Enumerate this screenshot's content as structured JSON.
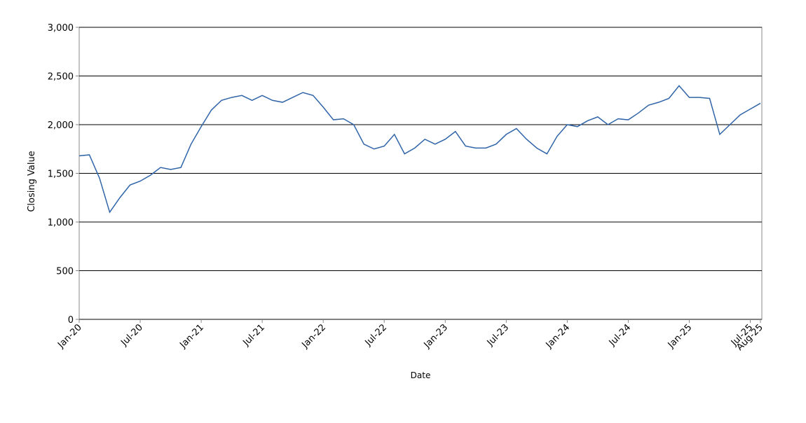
{
  "chart_data": {
    "type": "line",
    "x_label": "Date",
    "y_label": "Closing Value",
    "x": [
      "2020-01",
      "2020-02",
      "2020-03",
      "2020-04",
      "2020-05",
      "2020-06",
      "2020-07",
      "2020-08",
      "2020-09",
      "2020-10",
      "2020-11",
      "2020-12",
      "2021-01",
      "2021-02",
      "2021-03",
      "2021-04",
      "2021-05",
      "2021-06",
      "2021-07",
      "2021-08",
      "2021-09",
      "2021-10",
      "2021-11",
      "2021-12",
      "2022-01",
      "2022-02",
      "2022-03",
      "2022-04",
      "2022-05",
      "2022-06",
      "2022-07",
      "2022-08",
      "2022-09",
      "2022-10",
      "2022-11",
      "2022-12",
      "2023-01",
      "2023-02",
      "2023-03",
      "2023-04",
      "2023-05",
      "2023-06",
      "2023-07",
      "2023-08",
      "2023-09",
      "2023-10",
      "2023-11",
      "2023-12",
      "2024-01",
      "2024-02",
      "2024-03",
      "2024-04",
      "2024-05",
      "2024-06",
      "2024-07",
      "2024-08",
      "2024-09",
      "2024-10",
      "2024-11",
      "2024-12",
      "2025-01",
      "2025-02",
      "2025-03",
      "2025-04",
      "2025-05",
      "2025-06",
      "2025-07",
      "2025-08"
    ],
    "series": [
      {
        "name": "Closing Value",
        "color": "#2f64a8",
        "values": [
          1680,
          1690,
          1450,
          1100,
          1250,
          1380,
          1420,
          1480,
          1560,
          1540,
          1560,
          1800,
          1980,
          2150,
          2250,
          2280,
          2300,
          2250,
          2300,
          2250,
          2230,
          2280,
          2330,
          2300,
          2180,
          2050,
          2060,
          2000,
          1800,
          1750,
          1780,
          1900,
          1700,
          1760,
          1850,
          1800,
          1850,
          1930,
          1780,
          1760,
          1760,
          1800,
          1900,
          1960,
          1850,
          1760,
          1700,
          1880,
          2000,
          1980,
          2040,
          2080,
          2000,
          2060,
          2050,
          2120,
          2200,
          2230,
          2270,
          2400,
          2280,
          2280,
          2270,
          1900,
          2000,
          2100,
          2160,
          2220
        ]
      }
    ],
    "xlim": [
      "2020-01",
      "2025-08"
    ],
    "xticks": [
      {
        "value": "2020-01",
        "label": "Jan-20"
      },
      {
        "value": "2020-07",
        "label": "Jul-20"
      },
      {
        "value": "2021-01",
        "label": "Jan-21"
      },
      {
        "value": "2021-07",
        "label": "Jul-21"
      },
      {
        "value": "2022-01",
        "label": "Jan-22"
      },
      {
        "value": "2022-07",
        "label": "Jul-22"
      },
      {
        "value": "2023-01",
        "label": "Jan-23"
      },
      {
        "value": "2023-07",
        "label": "Jul-23"
      },
      {
        "value": "2024-01",
        "label": "Jan-24"
      },
      {
        "value": "2024-07",
        "label": "Jul-24"
      },
      {
        "value": "2025-01",
        "label": "Jan-25"
      },
      {
        "value": "2025-07",
        "label": "Jul-25"
      },
      {
        "value": "2025-08",
        "label": "Aug-25"
      }
    ],
    "ylim": [
      0,
      3000
    ],
    "yticks": [
      0,
      500,
      {
        "value": 1000,
        "label": "1,000"
      },
      {
        "value": 1500,
        "label": "1,500"
      },
      {
        "value": 2000,
        "label": "2,000"
      },
      {
        "value": 2500,
        "label": "2,500"
      },
      {
        "value": 3000,
        "label": "3,000"
      }
    ],
    "grid": true
  }
}
